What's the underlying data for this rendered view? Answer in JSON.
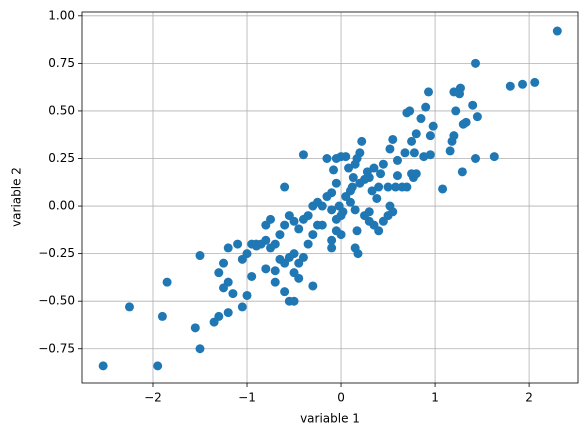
{
  "chart_data": {
    "type": "scatter",
    "color": "#1f77b4",
    "grid": true,
    "xlabel": "variable 1",
    "ylabel": "variable 2",
    "xlim": [
      -2.755,
      2.52
    ],
    "ylim": [
      -0.93,
      1.02
    ],
    "xticks": [
      {
        "value": -2,
        "label": "−2"
      },
      {
        "value": -1,
        "label": "−1"
      },
      0,
      1,
      2
    ],
    "yticks": [
      {
        "value": -0.75,
        "label": "−0.75"
      },
      {
        "value": -0.5,
        "label": "−0.50"
      },
      {
        "value": -0.25,
        "label": "−0.25"
      },
      {
        "value": 0,
        "label": "0.00"
      },
      {
        "value": 0.25,
        "label": "0.25"
      },
      {
        "value": 0.5,
        "label": "0.50"
      },
      {
        "value": 0.75,
        "label": "0.75"
      },
      {
        "value": 1,
        "label": "1.00"
      }
    ],
    "x": [
      2.3,
      2.06,
      1.93,
      1.8,
      1.43,
      1.63,
      1.43,
      1.45,
      1.4,
      1.33,
      1.3,
      1.27,
      1.26,
      1.2,
      1.22,
      1.29,
      1.2,
      1.18,
      1.16,
      1.08,
      0.98,
      0.93,
      0.95,
      0.95,
      0.9,
      0.88,
      0.85,
      0.8,
      0.75,
      0.78,
      0.8,
      0.77,
      0.75,
      0.73,
      0.7,
      0.68,
      0.65,
      0.6,
      0.58,
      0.7,
      0.55,
      0.5,
      0.52,
      0.45,
      0.42,
      0.4,
      0.35,
      0.3,
      0.28,
      0.33,
      0.22,
      0.2,
      0.17,
      0.15,
      0.13,
      0.2,
      0.12,
      0.1,
      0.05,
      0.0,
      -0.05,
      -0.15,
      -0.08,
      -0.05,
      -0.1,
      0.05,
      0.1,
      0.15,
      0.25,
      0.3,
      0.35,
      0.4,
      0.45,
      0.5,
      0.52,
      0.55,
      0.0,
      -0.02,
      0.02,
      -0.05,
      -0.1,
      -0.15,
      -0.2,
      -0.25,
      -0.3,
      -0.35,
      -0.4,
      -0.45,
      -0.5,
      -0.55,
      -0.6,
      -0.65,
      -0.7,
      -0.75,
      -0.8,
      -0.85,
      -0.9,
      -0.95,
      -1.0,
      -1.05,
      -1.1,
      -1.2,
      -1.25,
      -1.3,
      -1.2,
      -1.25,
      -1.15,
      -1.0,
      -0.95,
      -0.8,
      -0.7,
      -0.7,
      -0.6,
      -0.55,
      -0.5,
      -0.45,
      -0.5,
      -0.6,
      -0.55,
      -0.5,
      -0.4,
      -0.35,
      -0.3,
      -0.25,
      -0.3,
      -0.65,
      -0.75,
      -0.8,
      -0.6,
      -0.4,
      -0.2,
      -0.1,
      -0.1,
      0.0,
      0.15,
      0.18,
      0.17,
      0.3,
      -0.05,
      -1.05,
      -1.2,
      -1.3,
      -1.35,
      -1.5,
      -1.55,
      -1.5,
      -1.85,
      -1.9,
      -1.95,
      -2.25,
      -2.53,
      -0.9,
      -0.45,
      0.08,
      0.25,
      0.38,
      0.6
    ],
    "values": [
      0.92,
      0.65,
      0.64,
      0.63,
      0.75,
      0.26,
      0.25,
      0.47,
      0.53,
      0.44,
      0.43,
      0.62,
      0.59,
      0.6,
      0.5,
      0.18,
      0.37,
      0.34,
      0.29,
      0.09,
      0.42,
      0.6,
      0.37,
      0.27,
      0.52,
      0.26,
      0.46,
      0.38,
      0.34,
      0.28,
      0.17,
      0.15,
      0.17,
      0.5,
      0.49,
      0.28,
      0.1,
      0.24,
      0.1,
      0.1,
      0.35,
      0.1,
      0.3,
      0.22,
      0.17,
      0.1,
      0.2,
      0.15,
      0.18,
      0.08,
      0.34,
      0.28,
      0.25,
      0.22,
      0.15,
      0.12,
      0.1,
      0.02,
      0.26,
      0.26,
      0.25,
      0.25,
      0.19,
      0.12,
      0.07,
      0.05,
      0.08,
      -0.02,
      -0.05,
      -0.08,
      -0.1,
      -0.13,
      -0.08,
      -0.05,
      0.0,
      -0.03,
      -0.05,
      0.0,
      -0.03,
      -0.07,
      -0.02,
      0.05,
      0.0,
      0.02,
      0.0,
      -0.05,
      -0.07,
      -0.12,
      -0.08,
      -0.05,
      -0.1,
      -0.15,
      -0.2,
      -0.22,
      -0.18,
      -0.2,
      -0.21,
      -0.2,
      -0.25,
      -0.28,
      -0.2,
      -0.22,
      -0.3,
      -0.35,
      -0.4,
      -0.43,
      -0.46,
      -0.47,
      -0.37,
      -0.33,
      -0.34,
      -0.4,
      -0.45,
      -0.5,
      -0.5,
      -0.38,
      -0.35,
      -0.3,
      -0.27,
      -0.25,
      -0.27,
      -0.2,
      -0.15,
      -0.1,
      -0.42,
      -0.28,
      -0.07,
      -0.1,
      0.1,
      0.27,
      -0.1,
      -0.18,
      -0.22,
      -0.15,
      -0.22,
      -0.25,
      -0.13,
      -0.03,
      -0.13,
      -0.53,
      -0.56,
      -0.58,
      -0.61,
      -0.26,
      -0.64,
      -0.75,
      -0.4,
      -0.58,
      -0.84,
      -0.53,
      -0.84,
      -0.2,
      -0.3,
      0.2,
      0.14,
      0.04,
      0.16
    ]
  }
}
